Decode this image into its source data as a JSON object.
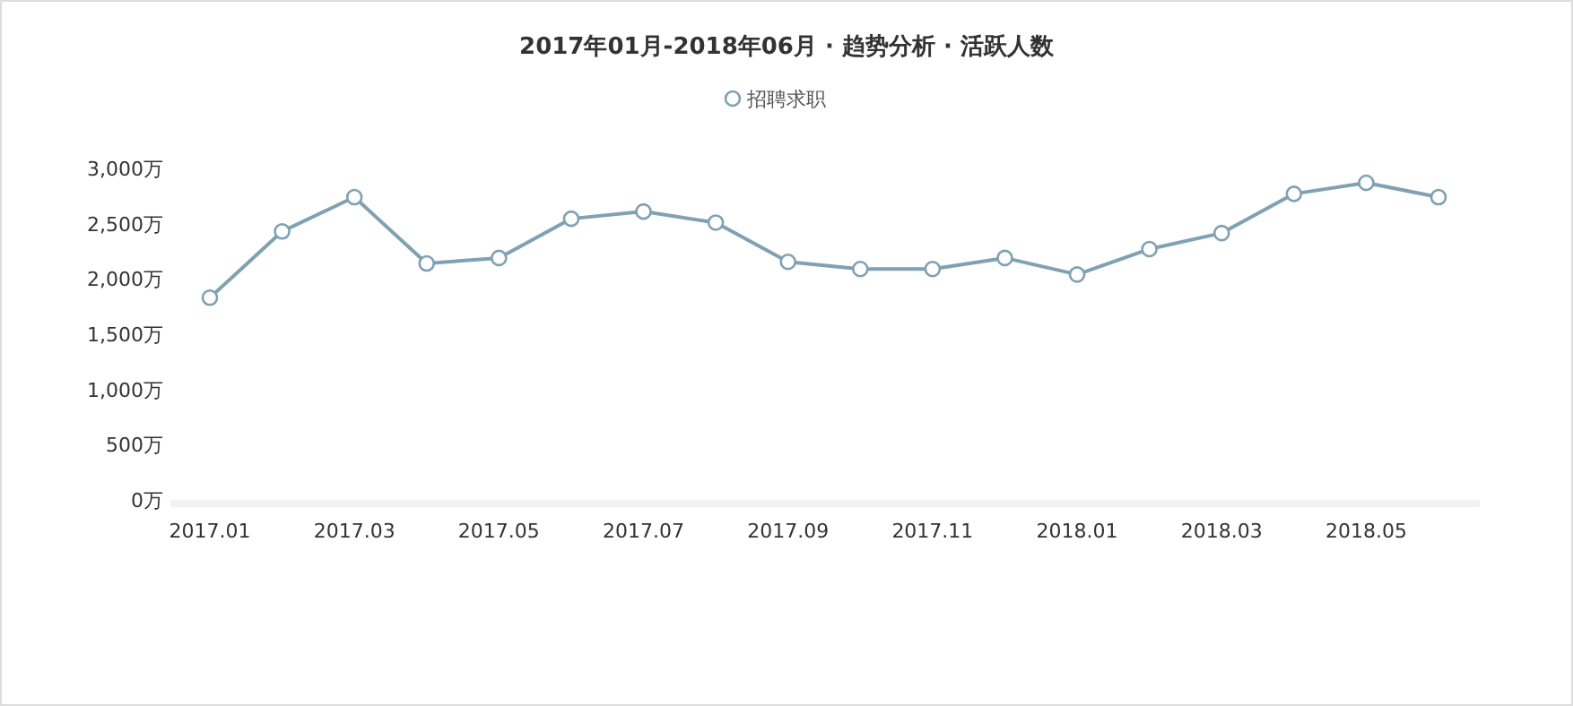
{
  "chart_data": {
    "type": "line",
    "title": "2017年01月-2018年06月 · 趋势分析 · 活跃人数",
    "categories": [
      "2017.01",
      null,
      "2017.03",
      null,
      "2017.05",
      null,
      "2017.07",
      null,
      "2017.09",
      null,
      "2017.11",
      null,
      "2018.01",
      null,
      "2018.03",
      null,
      "2018.05",
      null
    ],
    "series": [
      {
        "name": "招聘求职",
        "color": "#7fa1b3",
        "values": [
          1830,
          2430,
          2740,
          2140,
          2190,
          2545,
          2610,
          2510,
          2155,
          2090,
          2090,
          2190,
          2040,
          2270,
          2415,
          2770,
          2870,
          2740
        ]
      }
    ],
    "ylim": [
      0,
      3000
    ],
    "yticks": [
      {
        "value": 0,
        "label": "0万"
      },
      {
        "value": 500,
        "label": "500万"
      },
      {
        "value": 1000,
        "label": "1,000万"
      },
      {
        "value": 1500,
        "label": "1,500万"
      },
      {
        "value": 2000,
        "label": "2,000万"
      },
      {
        "value": 2500,
        "label": "2,500万"
      },
      {
        "value": 3000,
        "label": "3,000万"
      }
    ],
    "legend": "top",
    "marker": "circle",
    "line_style": "solid"
  }
}
